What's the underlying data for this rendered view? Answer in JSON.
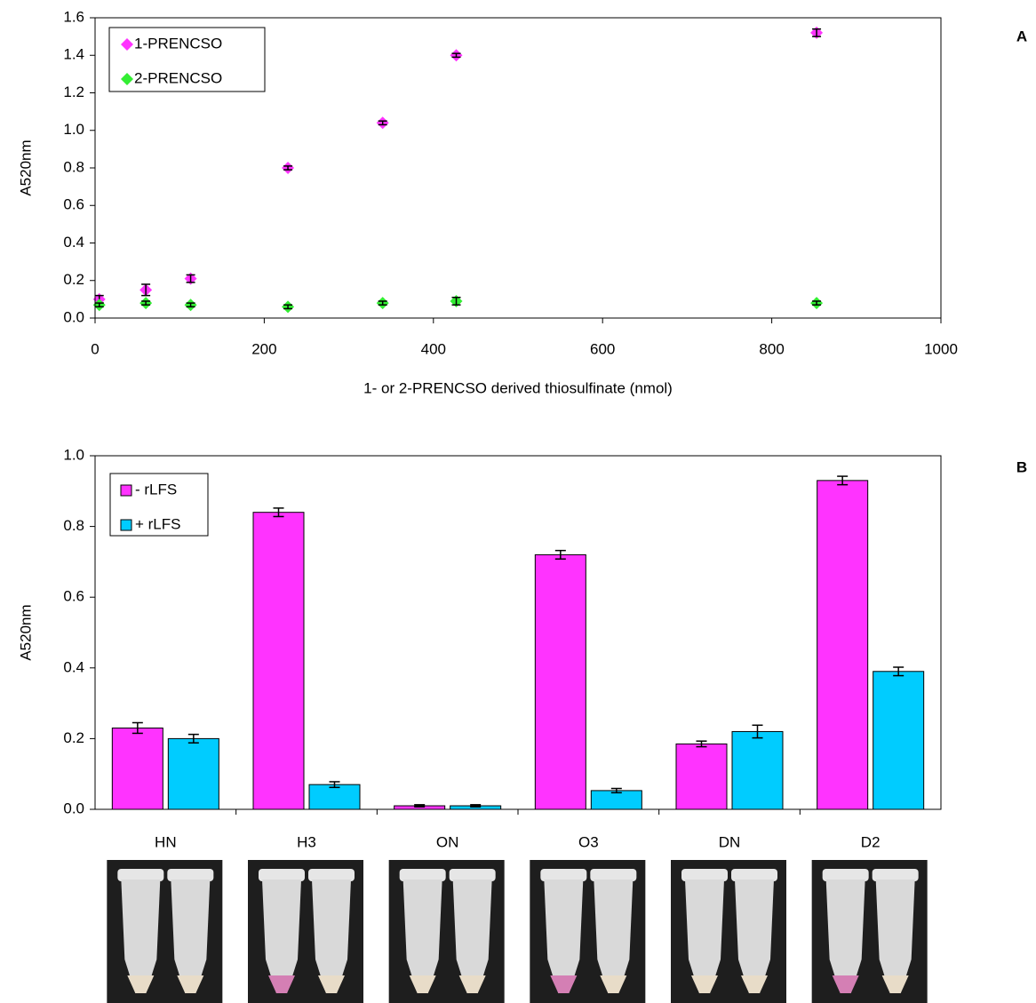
{
  "chart_data": [
    {
      "type": "scatter",
      "panel_label": "A",
      "y_label": "A520nm",
      "x_label": "1- or 2-PRENCSO derived thiosulfinate (nmol)",
      "x": [
        5,
        60,
        113,
        228,
        340,
        427,
        853
      ],
      "series": [
        {
          "name": "1-PRENCSO",
          "color": "#ff33ff",
          "values": [
            0.1,
            0.15,
            0.21,
            0.8,
            1.04,
            1.4,
            1.52
          ],
          "errors": [
            0.02,
            0.03,
            0.02,
            0.01,
            0.01,
            0.01,
            0.02
          ]
        },
        {
          "name": "2-PRENCSO",
          "color": "#33ee33",
          "values": [
            0.07,
            0.08,
            0.07,
            0.06,
            0.08,
            0.09,
            0.08
          ],
          "errors": [
            0.01,
            0.01,
            0.01,
            0.01,
            0.01,
            0.02,
            0.01
          ]
        }
      ],
      "xlim": [
        0,
        1000
      ],
      "xticks": [
        0,
        200,
        400,
        600,
        800,
        1000
      ],
      "ylim": [
        0,
        1.6
      ],
      "yticks": [
        {
          "value": 0,
          "label": "0.0"
        },
        {
          "value": 0.2,
          "label": "0.2"
        },
        {
          "value": 0.4,
          "label": "0.4"
        },
        {
          "value": 0.6,
          "label": "0.6"
        },
        {
          "value": 0.8,
          "label": "0.8"
        },
        {
          "value": 1.0,
          "label": "1.0"
        },
        {
          "value": 1.2,
          "label": "1.2"
        },
        {
          "value": 1.4,
          "label": "1.4"
        },
        {
          "value": 1.6,
          "label": "1.6"
        }
      ],
      "legend": "upper-left"
    },
    {
      "type": "bar",
      "panel_label": "B",
      "y_label": "A520nm",
      "categories": [
        "HN",
        "H3",
        "ON",
        "O3",
        "DN",
        "D2"
      ],
      "series": [
        {
          "name": "- rLFS",
          "color": "#ff33ff",
          "values": [
            0.23,
            0.84,
            0.01,
            0.72,
            0.185,
            0.93
          ],
          "errors": [
            0.015,
            0.012,
            0.003,
            0.012,
            0.008,
            0.012
          ]
        },
        {
          "name": "+ rLFS",
          "color": "#00ccff",
          "values": [
            0.2,
            0.07,
            0.01,
            0.053,
            0.22,
            0.39
          ],
          "errors": [
            0.012,
            0.008,
            0.003,
            0.006,
            0.018,
            0.012
          ]
        }
      ],
      "ylim": [
        0,
        1.0
      ],
      "yticks": [
        {
          "value": 0,
          "label": "0.0"
        },
        {
          "value": 0.2,
          "label": "0.2"
        },
        {
          "value": 0.4,
          "label": "0.4"
        },
        {
          "value": 0.6,
          "label": "0.6"
        },
        {
          "value": 0.8,
          "label": "0.8"
        },
        {
          "value": 1.0,
          "label": "1.0"
        }
      ],
      "legend": "upper-left"
    }
  ]
}
